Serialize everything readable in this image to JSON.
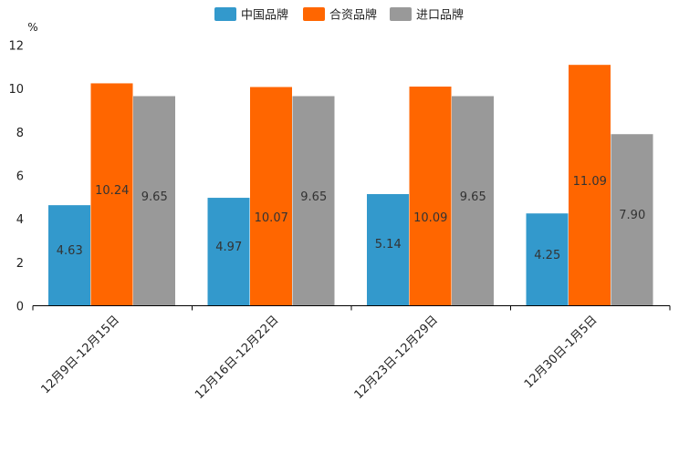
{
  "chart_data": {
    "type": "bar",
    "title": "",
    "xlabel": "",
    "ylabel": "%",
    "ylim": [
      0,
      12
    ],
    "yticks": [
      0,
      2,
      4,
      6,
      8,
      10,
      12
    ],
    "grid": false,
    "legend_position": "top-center",
    "categories": [
      "12月9日-12月15日",
      "12月16日-12月22日",
      "12月23日-12月29日",
      "12月30日-1月5日"
    ],
    "series": [
      {
        "name": "中国品牌",
        "color": "#3399cc",
        "values": [
          4.63,
          4.97,
          5.14,
          4.25
        ],
        "labels": [
          "4.63",
          "4.97",
          "5.14",
          "4.25"
        ]
      },
      {
        "name": "合资品牌",
        "color": "#ff6600",
        "values": [
          10.24,
          10.07,
          10.09,
          11.09
        ],
        "labels": [
          "10.24",
          "10.07",
          "10.09",
          "11.09"
        ]
      },
      {
        "name": "进口品牌",
        "color": "#999999",
        "values": [
          9.65,
          9.65,
          9.65,
          7.9
        ],
        "labels": [
          "9.65",
          "9.65",
          "9.65",
          "7.90"
        ]
      }
    ]
  }
}
